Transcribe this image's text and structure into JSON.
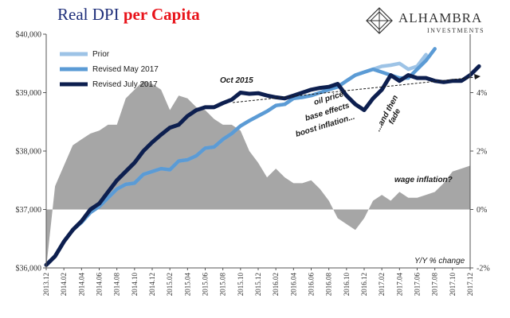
{
  "header": {
    "title_part1": "Real DPI",
    "title_part2": "per Capita"
  },
  "logo": {
    "name": "ALHAMBRA",
    "subtitle": "INVESTMENTS"
  },
  "colors": {
    "prior": "#9dc3e6",
    "revised_may": "#5b9bd5",
    "revised_july": "#0d1f4f",
    "yoy_area": "#a6a6a6"
  },
  "chart_data": {
    "type": "line",
    "x_labels": [
      "2013.12",
      "2014.02",
      "2014.04",
      "2014.06",
      "2014.08",
      "2014.10",
      "2014.12",
      "2015.02",
      "2015.04",
      "2015.06",
      "2015.08",
      "2015.10",
      "2015.12",
      "2016.02",
      "2016.04",
      "2016.06",
      "2016.08",
      "2016.10",
      "2016.12",
      "2017.02",
      "2017.04",
      "2017.06",
      "2017.08",
      "2017.10",
      "2017.12"
    ],
    "left_axis": {
      "ticks": [
        "$36,000",
        "$37,000",
        "$38,000",
        "$39,000",
        "$40,000"
      ],
      "ylim": [
        36000,
        40000
      ]
    },
    "right_axis": {
      "ticks": [
        "-2%",
        "0%",
        "2%",
        "4%"
      ],
      "ylim": [
        -2,
        6
      ]
    },
    "series": [
      {
        "name": "Prior",
        "axis": "left",
        "start_index": 0,
        "values": [
          36050,
          36200,
          36450,
          36650,
          36780,
          36950,
          37050,
          37200,
          37350,
          37430,
          37450,
          37600,
          37650,
          37700,
          37680,
          37830,
          37850,
          37920,
          38050,
          38070,
          38200,
          38300,
          38430,
          38520,
          38600,
          38680,
          38780,
          38800,
          38900,
          38920,
          38950,
          39000,
          39050,
          39100,
          39200,
          39300,
          39350,
          39400,
          39450,
          39470,
          39500,
          39400,
          39450,
          39650
        ]
      },
      {
        "name": "Revised May 2017",
        "axis": "left",
        "start_index": 0,
        "values": [
          36050,
          36200,
          36450,
          36650,
          36780,
          36950,
          37050,
          37200,
          37350,
          37430,
          37450,
          37600,
          37650,
          37700,
          37680,
          37830,
          37850,
          37920,
          38050,
          38070,
          38200,
          38300,
          38430,
          38520,
          38600,
          38680,
          38780,
          38800,
          38900,
          38920,
          38950,
          39000,
          39050,
          39100,
          39200,
          39300,
          39350,
          39400,
          39350,
          39300,
          39250,
          39250,
          39400,
          39550,
          39750
        ]
      },
      {
        "name": "Revised July 2017",
        "axis": "left",
        "start_index": 0,
        "values": [
          36050,
          36200,
          36450,
          36650,
          36800,
          37000,
          37100,
          37300,
          37500,
          37650,
          37800,
          38000,
          38150,
          38280,
          38400,
          38450,
          38600,
          38700,
          38750,
          38750,
          38820,
          38880,
          39000,
          38980,
          38990,
          38950,
          38920,
          38900,
          38950,
          39000,
          39050,
          39080,
          39100,
          39150,
          38950,
          38800,
          38700,
          38900,
          39050,
          39300,
          39200,
          39300,
          39250,
          39250,
          39200,
          39180,
          39200,
          39200,
          39300,
          39450
        ]
      },
      {
        "name": "Y/Y % change",
        "axis": "right",
        "type": "area",
        "start_index": 0,
        "values": [
          -2.0,
          0.8,
          1.5,
          2.2,
          2.4,
          2.6,
          2.7,
          2.9,
          2.9,
          3.8,
          4.1,
          4.4,
          4.3,
          4.1,
          3.4,
          3.9,
          3.8,
          3.5,
          3.4,
          3.1,
          2.9,
          2.9,
          2.7,
          2.0,
          1.6,
          1.1,
          1.4,
          1.1,
          0.9,
          0.9,
          1.0,
          0.7,
          0.3,
          -0.3,
          -0.5,
          -0.7,
          -0.3,
          0.3,
          0.5,
          0.3,
          0.6,
          0.4,
          0.4,
          0.5,
          0.6,
          0.9,
          1.3,
          1.4,
          1.5
        ]
      }
    ],
    "annotations": [
      "Oct 2015",
      "oil price",
      "base effects",
      "boost inflation...",
      "...and then",
      "fade",
      "wage inflation?",
      "Y/Y % change"
    ],
    "legend": {
      "position": "top-left",
      "entries": [
        "Prior",
        "Revised May 2017",
        "Revised July 2017"
      ]
    },
    "grid": false
  }
}
